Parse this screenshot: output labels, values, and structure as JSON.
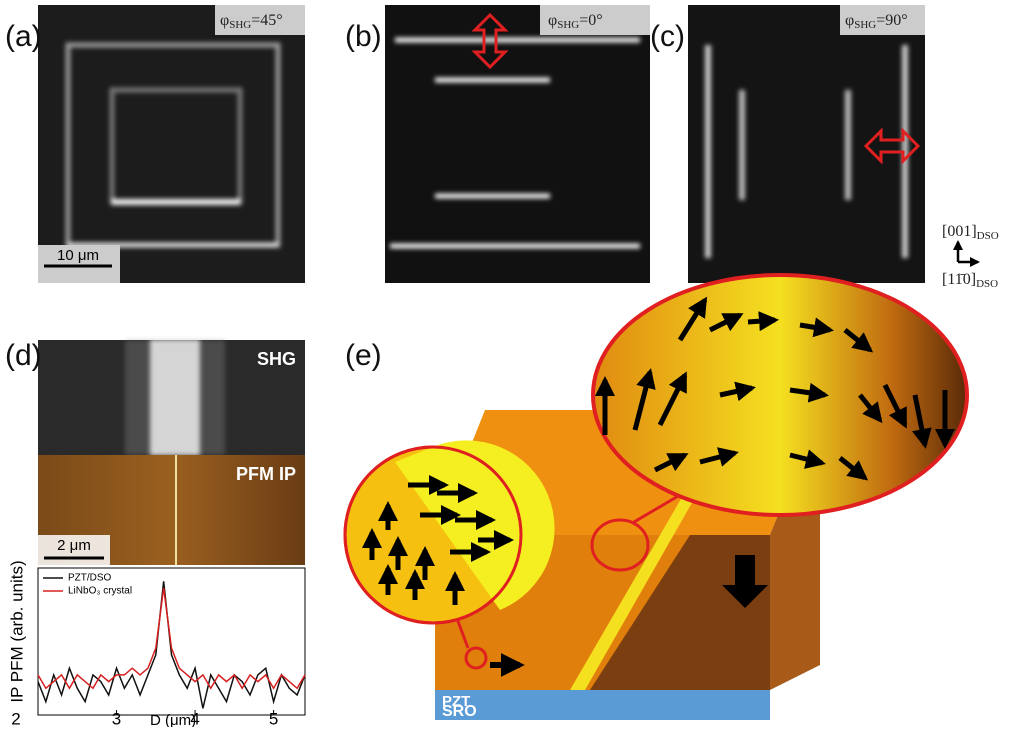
{
  "panels": {
    "a": {
      "label": "(a)",
      "phi": "φ",
      "phi_sub": "SHG",
      "angle": "=45°",
      "scale": "10 μm"
    },
    "b": {
      "label": "(b)",
      "phi": "φ",
      "phi_sub": "SHG",
      "angle": "=0°"
    },
    "c": {
      "label": "(c)",
      "phi": "φ",
      "phi_sub": "SHG",
      "angle": "=90°"
    },
    "axes": {
      "up": "[001]",
      "up_sub": "DSO",
      "right": "[11̄0]",
      "right_sub": "DSO"
    },
    "d": {
      "label": "(d)",
      "shg": "SHG",
      "pfm": "PFM IP",
      "scale": "2 μm"
    },
    "e": {
      "label": "(e)",
      "pzt": "PZT",
      "sro": "SRO"
    }
  },
  "chart_data": {
    "type": "line",
    "x_label": "D (μm)",
    "y_label": "IP PFM (arb. units)",
    "x": [
      2.0,
      2.1,
      2.2,
      2.3,
      2.4,
      2.5,
      2.6,
      2.7,
      2.8,
      2.9,
      3.0,
      3.1,
      3.2,
      3.3,
      3.4,
      3.5,
      3.6,
      3.7,
      3.8,
      3.9,
      4.0,
      4.1,
      4.2,
      4.3,
      4.4,
      4.5,
      4.6,
      4.7,
      4.8,
      4.9,
      5.0,
      5.1,
      5.2,
      5.3,
      5.4
    ],
    "series": [
      {
        "name": "PZT/DSO",
        "color": "#111111",
        "values": [
          0.25,
          0.1,
          0.3,
          0.15,
          0.35,
          0.2,
          0.1,
          0.3,
          0.25,
          0.15,
          0.35,
          0.2,
          0.3,
          0.15,
          0.3,
          0.45,
          1.0,
          0.45,
          0.3,
          0.2,
          0.35,
          0.05,
          0.3,
          0.2,
          0.1,
          0.3,
          0.25,
          0.15,
          0.3,
          0.35,
          0.1,
          0.3,
          0.2,
          0.15,
          0.3
        ]
      },
      {
        "name": "LiNbO₃ crystal",
        "color": "#d62020",
        "values": [
          0.3,
          0.2,
          0.25,
          0.3,
          0.2,
          0.3,
          0.25,
          0.2,
          0.3,
          0.25,
          0.3,
          0.3,
          0.35,
          0.3,
          0.35,
          0.5,
          0.95,
          0.5,
          0.35,
          0.3,
          0.25,
          0.3,
          0.2,
          0.3,
          0.25,
          0.3,
          0.2,
          0.3,
          0.25,
          0.3,
          0.2,
          0.3,
          0.25,
          0.2,
          0.3
        ]
      }
    ],
    "xlim": [
      2.0,
      5.4
    ],
    "ylim": [
      0,
      1.1
    ],
    "xticks": [
      2,
      3,
      4,
      5
    ]
  }
}
